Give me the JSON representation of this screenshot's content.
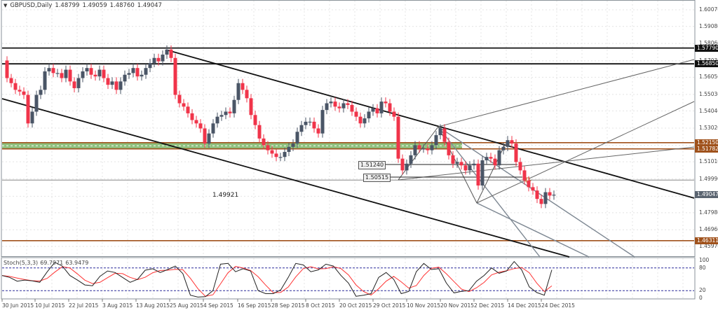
{
  "header": {
    "symbol": "GBPUSD,Daily",
    "open": "1.48799",
    "high": "1.49059",
    "low": "1.48760",
    "close": "1.49047"
  },
  "stochastic": {
    "name": "Stoch(5,3,3)",
    "main": "69.7971",
    "signal": "63.9479",
    "levels": [
      "100",
      "80",
      "20",
      "0"
    ]
  },
  "annotations": {
    "level_label": "1.49921",
    "tag_1": "1.51240",
    "tag_2": "1.50515"
  },
  "colors": {
    "bull": "#4a5566",
    "bear": "#f0344a",
    "support_zone": "#8fc17e",
    "orange_line": "#a0521c",
    "stoch_main": "#222222",
    "stoch_signal": "#ff3333",
    "stoch_levels": "#2a2a99"
  },
  "chart_data": {
    "type": "candlestick",
    "title": "GBPUSD,Daily",
    "ylim": [
      1.4597,
      1.6007
    ],
    "y_ticks": [
      "1.60070",
      "1.59080",
      "1.58060",
      "1.57030",
      "1.56050",
      "1.55030",
      "1.54040",
      "1.53020",
      "1.52000",
      "1.51010",
      "1.49990",
      "1.48960",
      "1.47980",
      "1.46960",
      "1.45970"
    ],
    "x_ticks": [
      "30 Jun 2015",
      "10 Jul 2015",
      "22 Jul 2015",
      "3 Aug 2015",
      "13 Aug 2015",
      "25 Aug 2015",
      "4 Sep 2015",
      "16 Sep 2015",
      "28 Sep 2015",
      "8 Oct 2015",
      "20 Oct 2015",
      "29 Oct 2015",
      "10 Nov 2015",
      "20 Nov 2015",
      "2 Dec 2015",
      "14 Dec 2015",
      "24 Dec 2015"
    ],
    "horizontal_levels": [
      {
        "value": "1.57790",
        "style": "black"
      },
      {
        "value": "1.56850",
        "style": "black"
      },
      {
        "value": "1.52150",
        "style": "orange"
      },
      {
        "value": "1.51782",
        "style": "orange"
      },
      {
        "value": "1.49921",
        "style": "gray"
      },
      {
        "value": "1.46311",
        "style": "orange"
      }
    ],
    "current_price": "1.49047",
    "last_ohlc": {
      "open": 1.48799,
      "high": 1.49059,
      "low": 1.4876,
      "close": 1.49047
    },
    "price_y_axis_labels": {
      "1.57790": "1.57790",
      "1.56850": "1.56850",
      "1.52150": "1.52150",
      "1.51782": "1.51782",
      "1.49047": "1.49047",
      "1.46311": "1.46311"
    },
    "stoch_range": [
      0,
      100
    ],
    "stoch_levels": [
      80,
      20
    ],
    "stoch_last": {
      "main": 69.7971,
      "signal": 63.9479
    },
    "legend": [
      "Stoch(5,3,3) 69.7971 63.9479"
    ]
  }
}
